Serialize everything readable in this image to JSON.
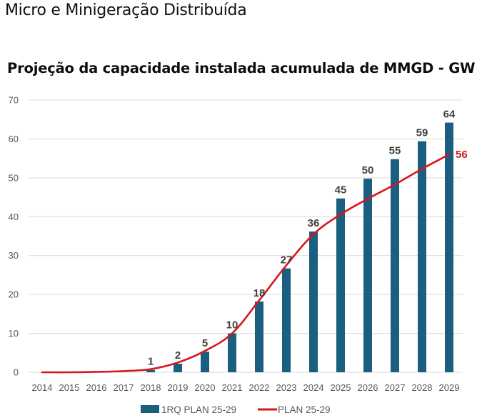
{
  "page": {
    "heading": "Micro e Minigeração Distribuída"
  },
  "colors": {
    "bar": "#1a5e80",
    "line": "#d7161e",
    "grid": "#d9d9d9",
    "tick_text": "#595959",
    "data_label": "#404040"
  },
  "chart_data": {
    "type": "bar",
    "title": "Projeção da capacidade instalada acumulada de MMGD - GW",
    "xlabel": "",
    "ylabel": "",
    "ylim": [
      0,
      70
    ],
    "yticks": [
      0,
      10,
      20,
      30,
      40,
      50,
      60,
      70
    ],
    "grid": true,
    "legend_position": "bottom",
    "categories": [
      "2014",
      "2015",
      "2016",
      "2017",
      "2018",
      "2019",
      "2020",
      "2021",
      "2022",
      "2023",
      "2024",
      "2025",
      "2026",
      "2027",
      "2028",
      "2029"
    ],
    "series": [
      {
        "name": "1RQ PLAN 25-29",
        "type": "bar",
        "values": [
          0,
          0,
          0,
          0,
          0.6,
          2.2,
          5.3,
          10,
          18.2,
          26.7,
          36.2,
          44.7,
          49.8,
          54.8,
          59.4,
          64.2
        ],
        "labels": [
          "",
          "",
          "",
          "",
          "1",
          "2",
          "5",
          "10",
          "18",
          "27",
          "36",
          "45",
          "50",
          "55",
          "59",
          "64"
        ]
      },
      {
        "name": "PLAN 25-29",
        "type": "line",
        "values": [
          0,
          0,
          0.1,
          0.3,
          0.8,
          2.5,
          5.5,
          10,
          18.5,
          27.5,
          35.5,
          40.6,
          44.6,
          48.3,
          52.3,
          56
        ],
        "end_label": "56"
      }
    ]
  }
}
